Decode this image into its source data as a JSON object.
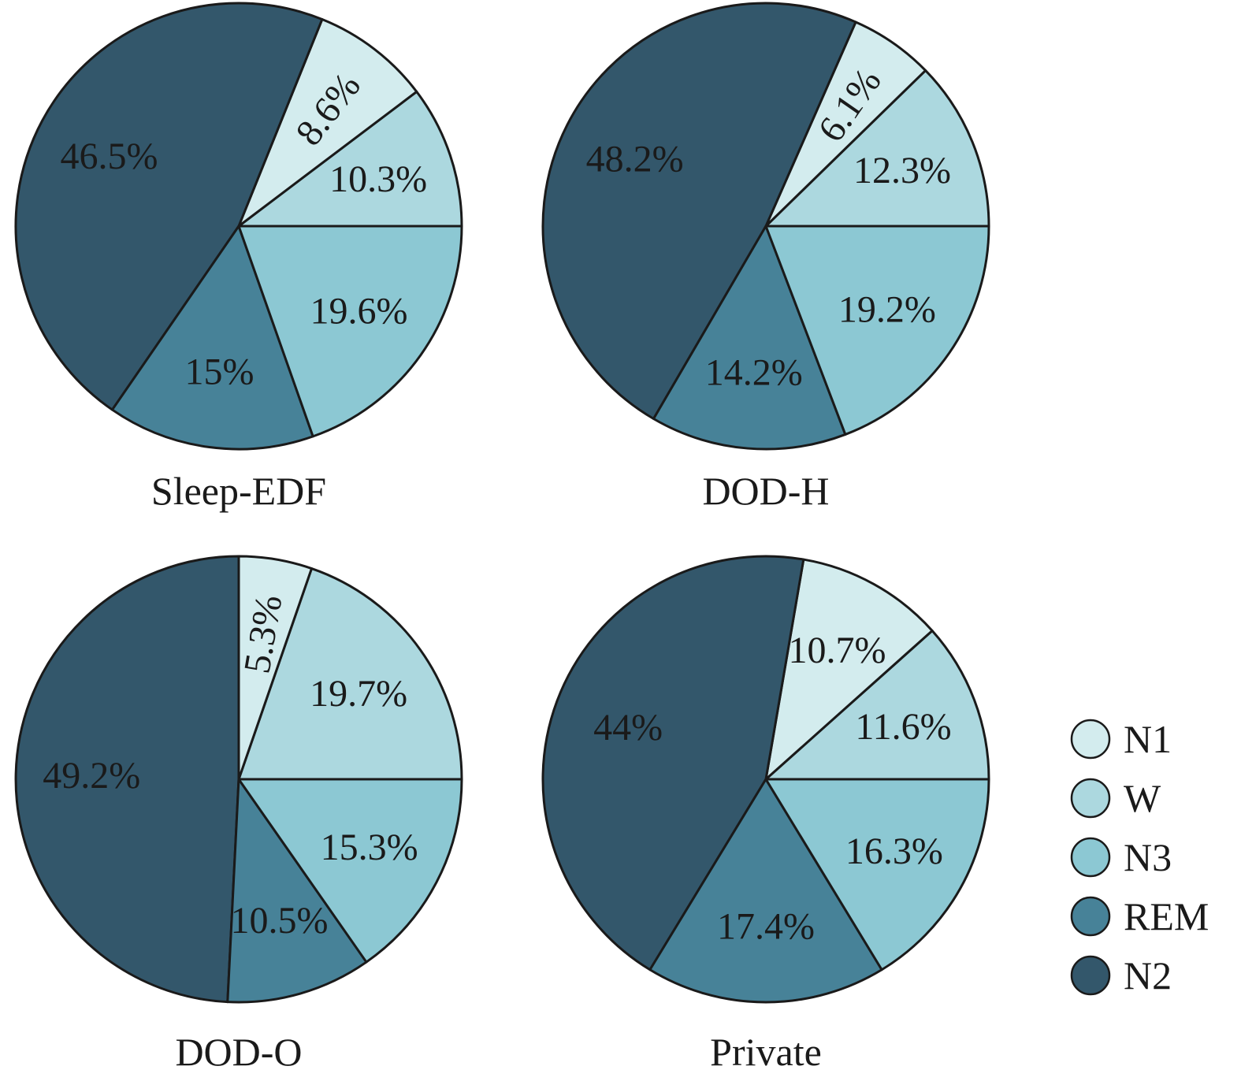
{
  "colors": {
    "N1": "#d3ecee",
    "W": "#acd8df",
    "N3": "#8cc8d3",
    "REM": "#478298",
    "N2": "#33576b",
    "outline": "#1a1a1a"
  },
  "legend": {
    "placement": "bottom-right",
    "items": [
      {
        "key": "N1",
        "label": "N1"
      },
      {
        "key": "W",
        "label": "W"
      },
      {
        "key": "N3",
        "label": "N3"
      },
      {
        "key": "REM",
        "label": "REM"
      },
      {
        "key": "N2",
        "label": "N2"
      }
    ]
  },
  "chart_data": [
    {
      "type": "pie",
      "title": "Sleep-EDF",
      "slices": [
        {
          "key": "W",
          "value": 10.3,
          "label": "10.3%"
        },
        {
          "key": "N1",
          "value": 8.6,
          "label": "8.6%"
        },
        {
          "key": "N2",
          "value": 46.5,
          "label": "46.5%"
        },
        {
          "key": "REM",
          "value": 15.0,
          "label": "15%"
        },
        {
          "key": "N3",
          "value": 19.6,
          "label": "19.6%"
        }
      ]
    },
    {
      "type": "pie",
      "title": "DOD-H",
      "slices": [
        {
          "key": "W",
          "value": 12.3,
          "label": "12.3%"
        },
        {
          "key": "N1",
          "value": 6.1,
          "label": "6.1%"
        },
        {
          "key": "N2",
          "value": 48.2,
          "label": "48.2%"
        },
        {
          "key": "REM",
          "value": 14.2,
          "label": "14.2%"
        },
        {
          "key": "N3",
          "value": 19.2,
          "label": "19.2%"
        }
      ]
    },
    {
      "type": "pie",
      "title": "DOD-O",
      "slices": [
        {
          "key": "W",
          "value": 19.7,
          "label": "19.7%"
        },
        {
          "key": "N1",
          "value": 5.3,
          "label": "5.3%"
        },
        {
          "key": "N2",
          "value": 49.2,
          "label": "49.2%"
        },
        {
          "key": "REM",
          "value": 10.5,
          "label": "10.5%"
        },
        {
          "key": "N3",
          "value": 15.3,
          "label": "15.3%"
        }
      ]
    },
    {
      "type": "pie",
      "title": "Private",
      "slices": [
        {
          "key": "W",
          "value": 11.6,
          "label": "11.6%"
        },
        {
          "key": "N1",
          "value": 10.7,
          "label": "10.7%"
        },
        {
          "key": "N2",
          "value": 44.0,
          "label": "44%"
        },
        {
          "key": "REM",
          "value": 17.4,
          "label": "17.4%"
        },
        {
          "key": "N3",
          "value": 16.3,
          "label": "16.3%"
        }
      ]
    }
  ]
}
